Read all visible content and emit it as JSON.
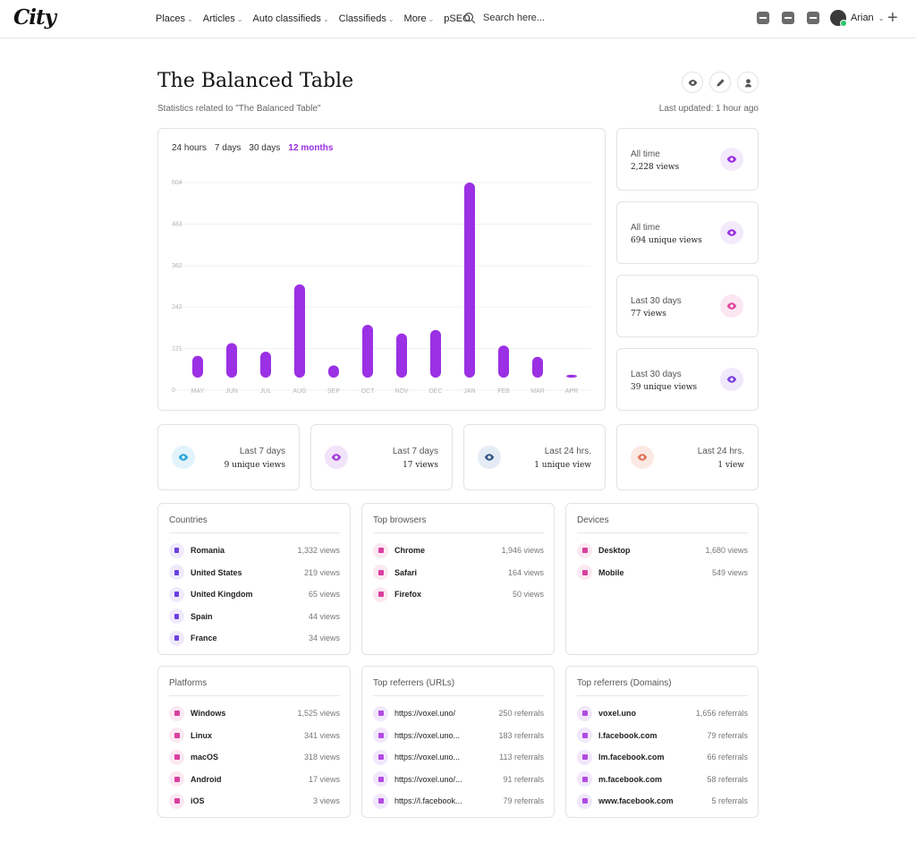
{
  "header": {
    "logo": "City",
    "nav": [
      {
        "label": "Places",
        "dropdown": true
      },
      {
        "label": "Articles",
        "dropdown": true
      },
      {
        "label": "Auto classifieds",
        "dropdown": true
      },
      {
        "label": "Classifieds",
        "dropdown": true
      },
      {
        "label": "More",
        "dropdown": true
      },
      {
        "label": "pSEO",
        "dropdown": false
      }
    ],
    "search_placeholder": "Search here...",
    "user_name": "Arian"
  },
  "page": {
    "title": "The Balanced Table",
    "subtitle": "Statistics related to \"The Balanced Table\"",
    "last_updated": "Last updated: 1 hour ago"
  },
  "chart": {
    "ranges": [
      "24 hours",
      "7 days",
      "30 days",
      "12 months"
    ],
    "active_range": "12 months",
    "accent": "#9b30e4"
  },
  "chart_data": {
    "type": "bar",
    "categories": [
      "MAY",
      "JUN",
      "JUL",
      "AUG",
      "SEP",
      "OCT",
      "NOV",
      "DEC",
      "JAN",
      "FEB",
      "MAR",
      "APR"
    ],
    "values": [
      100,
      137,
      112,
      308,
      72,
      190,
      165,
      175,
      604,
      130,
      97,
      45
    ],
    "yticks": [
      0,
      121,
      242,
      362,
      483,
      604
    ],
    "ylim": [
      0,
      604
    ],
    "title": "",
    "xlabel": "",
    "ylabel": ""
  },
  "stats_right": [
    {
      "label": "All time",
      "value": "2,228 views",
      "color": "#9b30e4"
    },
    {
      "label": "All time",
      "value": "694 unique views",
      "color": "#9b30e4"
    },
    {
      "label": "Last 30 days",
      "value": "77 views",
      "color": "#e0479e"
    },
    {
      "label": "Last 30 days",
      "value": "39 unique views",
      "color": "#7d3fe0"
    }
  ],
  "stats_bottom": [
    {
      "label": "Last 7 days",
      "value": "9 unique views",
      "color": "#2ba6d9"
    },
    {
      "label": "Last 7 days",
      "value": "17 views",
      "color": "#a33fd6"
    },
    {
      "label": "Last 24 hrs.",
      "value": "1 unique view",
      "color": "#3b5a8a"
    },
    {
      "label": "Last 24 hrs.",
      "value": "1 view",
      "color": "#e0735a"
    }
  ],
  "lists": {
    "countries": {
      "title": "Countries",
      "rows": [
        {
          "name": "Romania",
          "value": "1,332 views"
        },
        {
          "name": "United States",
          "value": "219 views"
        },
        {
          "name": "United Kingdom",
          "value": "65 views"
        },
        {
          "name": "Spain",
          "value": "44 views"
        },
        {
          "name": "France",
          "value": "34 views"
        }
      ]
    },
    "browsers": {
      "title": "Top browsers",
      "rows": [
        {
          "name": "Chrome",
          "value": "1,946 views"
        },
        {
          "name": "Safari",
          "value": "164 views"
        },
        {
          "name": "Firefox",
          "value": "50 views"
        }
      ]
    },
    "devices": {
      "title": "Devices",
      "rows": [
        {
          "name": "Desktop",
          "value": "1,680 views"
        },
        {
          "name": "Mobile",
          "value": "549 views"
        }
      ]
    },
    "platforms": {
      "title": "Platforms",
      "rows": [
        {
          "name": "Windows",
          "value": "1,525 views"
        },
        {
          "name": "Linux",
          "value": "341 views"
        },
        {
          "name": "macOS",
          "value": "318 views"
        },
        {
          "name": "Android",
          "value": "17 views"
        },
        {
          "name": "iOS",
          "value": "3 views"
        }
      ]
    },
    "referrer_urls": {
      "title": "Top referrers (URLs)",
      "rows": [
        {
          "name": "https://voxel.uno/",
          "value": "250 referrals"
        },
        {
          "name": "https://voxel.uno...",
          "value": "183 referrals"
        },
        {
          "name": "https://voxel.uno...",
          "value": "113 referrals"
        },
        {
          "name": "https://voxel.uno/...",
          "value": "91 referrals"
        },
        {
          "name": "https://l.facebook...",
          "value": "79 referrals"
        }
      ]
    },
    "referrer_domains": {
      "title": "Top referrers (Domains)",
      "rows": [
        {
          "name": "voxel.uno",
          "value": "1,656 referrals"
        },
        {
          "name": "l.facebook.com",
          "value": "79 referrals"
        },
        {
          "name": "lm.facebook.com",
          "value": "66 referrals"
        },
        {
          "name": "m.facebook.com",
          "value": "58 referrals"
        },
        {
          "name": "www.facebook.com",
          "value": "5 referrals"
        }
      ]
    }
  }
}
